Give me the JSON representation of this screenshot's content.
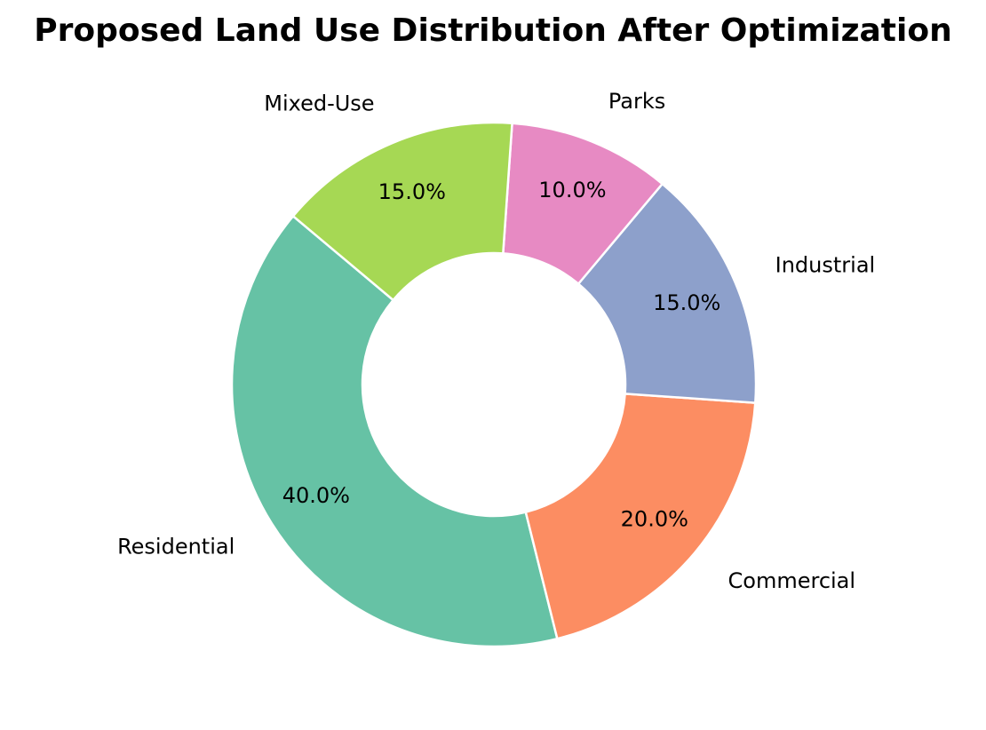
{
  "chart_data": {
    "type": "pie",
    "variant": "donut",
    "title": "Proposed Land Use Distribution After Optimization",
    "categories": [
      "Residential",
      "Commercial",
      "Industrial",
      "Parks",
      "Mixed-Use"
    ],
    "values": [
      40,
      20,
      15,
      10,
      15
    ],
    "percent_labels": [
      "40.0%",
      "20.0%",
      "15.0%",
      "10.0%",
      "15.0%"
    ],
    "colors": [
      "#66c2a5",
      "#fc8d62",
      "#8da0cb",
      "#e78ac3",
      "#a6d854"
    ],
    "start_angle_deg": 140,
    "direction": "counterclockwise",
    "legend": "none"
  }
}
